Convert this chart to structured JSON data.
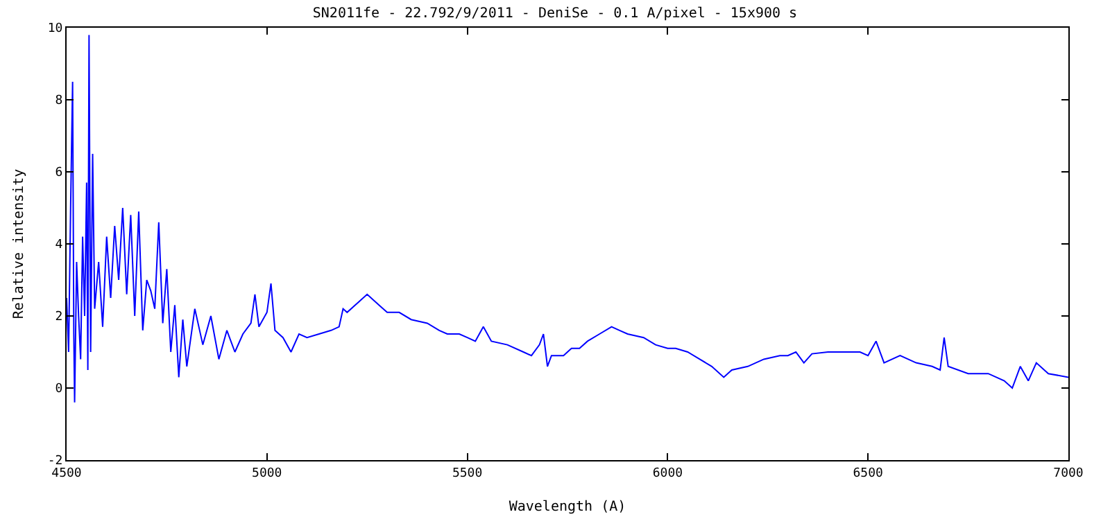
{
  "chart_data": {
    "type": "line",
    "title": "SN2011fe - 22.792/9/2011 - DeniSe - 0.1 A/pixel - 15x900 s",
    "xlabel": "Wavelength (A)",
    "ylabel": "Relative intensity",
    "x": [
      4500,
      4505,
      4510,
      4515,
      4518,
      4520,
      4525,
      4530,
      4535,
      4540,
      4545,
      4550,
      4553,
      4556,
      4560,
      4565,
      4570,
      4580,
      4590,
      4600,
      4610,
      4620,
      4630,
      4640,
      4650,
      4660,
      4670,
      4680,
      4690,
      4700,
      4710,
      4720,
      4730,
      4740,
      4750,
      4760,
      4770,
      4780,
      4790,
      4800,
      4820,
      4840,
      4860,
      4880,
      4900,
      4920,
      4940,
      4960,
      4970,
      4980,
      5000,
      5010,
      5020,
      5040,
      5060,
      5080,
      5100,
      5130,
      5160,
      5180,
      5190,
      5200,
      5230,
      5250,
      5280,
      5300,
      5330,
      5360,
      5400,
      5430,
      5450,
      5480,
      5500,
      5520,
      5540,
      5560,
      5600,
      5640,
      5660,
      5680,
      5690,
      5700,
      5710,
      5740,
      5760,
      5780,
      5800,
      5830,
      5860,
      5880,
      5900,
      5940,
      5970,
      6000,
      6020,
      6050,
      6080,
      6110,
      6140,
      6160,
      6200,
      6240,
      6280,
      6300,
      6320,
      6340,
      6360,
      6400,
      6450,
      6480,
      6500,
      6520,
      6540,
      6580,
      6620,
      6660,
      6680,
      6690,
      6700,
      6750,
      6800,
      6840,
      6860,
      6880,
      6900,
      6920,
      6950,
      7000
    ],
    "series": [
      {
        "color": "#0000ff",
        "values": [
          2.5,
          1.0,
          5.0,
          8.5,
          1.5,
          -0.4,
          3.5,
          2.0,
          0.8,
          4.2,
          2.0,
          5.7,
          0.5,
          9.8,
          1.0,
          6.5,
          2.2,
          3.5,
          1.7,
          4.2,
          2.5,
          4.5,
          3.0,
          5.0,
          2.6,
          4.8,
          2.0,
          4.9,
          1.6,
          3.0,
          2.7,
          2.2,
          4.6,
          1.8,
          3.3,
          1.0,
          2.3,
          0.3,
          1.9,
          0.6,
          2.2,
          1.2,
          2.0,
          0.8,
          1.6,
          1.0,
          1.5,
          1.8,
          2.6,
          1.7,
          2.1,
          2.9,
          1.6,
          1.4,
          1.0,
          1.5,
          1.4,
          1.5,
          1.6,
          1.7,
          2.2,
          2.1,
          2.4,
          2.6,
          2.3,
          2.1,
          2.1,
          1.9,
          1.8,
          1.6,
          1.5,
          1.5,
          1.4,
          1.3,
          1.7,
          1.3,
          1.2,
          1.0,
          0.9,
          1.2,
          1.5,
          0.6,
          0.9,
          0.9,
          1.1,
          1.1,
          1.3,
          1.5,
          1.7,
          1.6,
          1.5,
          1.4,
          1.2,
          1.1,
          1.1,
          1.0,
          0.8,
          0.6,
          0.3,
          0.5,
          0.6,
          0.8,
          0.9,
          0.9,
          1.0,
          0.7,
          0.95,
          1.0,
          1.0,
          1.0,
          0.9,
          1.3,
          0.7,
          0.9,
          0.7,
          0.6,
          0.5,
          1.4,
          0.6,
          0.4,
          0.4,
          0.2,
          0.0,
          0.6,
          0.2,
          0.7,
          0.4,
          0.3
        ]
      }
    ],
    "xlim": [
      4500,
      7000
    ],
    "xticks": [
      4500,
      5000,
      5500,
      6000,
      6500,
      7000
    ],
    "ylim": [
      -2,
      10
    ],
    "yticks": [
      -2,
      0,
      2,
      4,
      6,
      8,
      10
    ],
    "marker": "none",
    "line_style": "solid"
  }
}
